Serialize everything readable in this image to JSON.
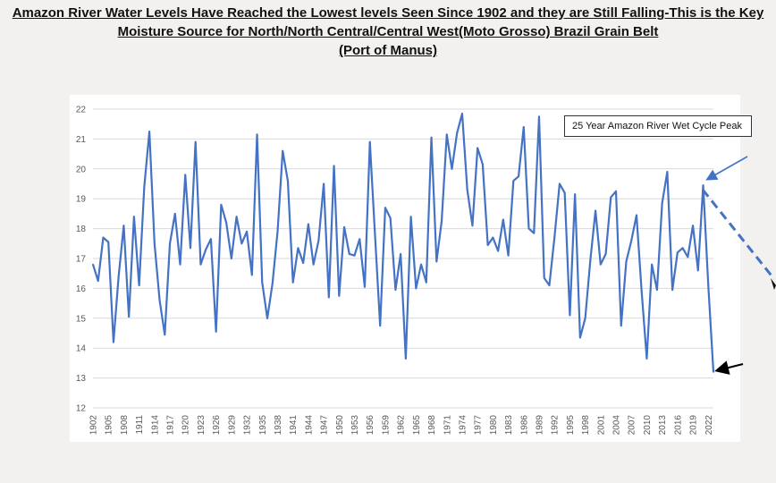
{
  "title": {
    "line1": "Amazon River Water Levels Have Reached the Lowest levels Seen Since 1902 and they are Still Falling-This is the Key",
    "line2": "Moisture Source for North/North Central/Central West(Moto Grosso) Brazil Grain Belt",
    "line3": "(Port of Manus)"
  },
  "annotation": "25 Year Amazon River Wet Cycle Peak",
  "colors": {
    "line": "#4472c4",
    "grid": "#d9d9d9",
    "arrow_dashed": "#4472c4",
    "arrow_black": "#000000"
  },
  "chart_data": {
    "type": "line",
    "title": "",
    "xlabel": "",
    "ylabel": "",
    "ylim": [
      12,
      22
    ],
    "yticks": [
      12,
      13,
      14,
      15,
      16,
      17,
      18,
      19,
      20,
      21,
      22
    ],
    "grid": true,
    "x_tick_labels": [
      "1902",
      "1905",
      "1908",
      "1911",
      "1914",
      "1917",
      "1920",
      "1923",
      "1926",
      "1929",
      "1932",
      "1935",
      "1938",
      "1941",
      "1944",
      "1947",
      "1950",
      "1953",
      "1956",
      "1959",
      "1962",
      "1965",
      "1968",
      "1971",
      "1974",
      "1977",
      "1980",
      "1983",
      "1986",
      "1989",
      "1992",
      "1995",
      "1998",
      "2001",
      "2004",
      "2007",
      "2010",
      "2013",
      "2016",
      "2019",
      "2022"
    ],
    "x_start": 1902,
    "x_end": 2023,
    "series": [
      {
        "name": "",
        "x": [
          1902,
          1903,
          1904,
          1905,
          1906,
          1907,
          1908,
          1909,
          1910,
          1911,
          1912,
          1913,
          1914,
          1915,
          1916,
          1917,
          1918,
          1919,
          1920,
          1921,
          1922,
          1923,
          1924,
          1925,
          1926,
          1927,
          1928,
          1929,
          1930,
          1931,
          1932,
          1933,
          1934,
          1935,
          1936,
          1937,
          1938,
          1939,
          1940,
          1941,
          1942,
          1943,
          1944,
          1945,
          1946,
          1947,
          1948,
          1949,
          1950,
          1951,
          1952,
          1953,
          1954,
          1955,
          1956,
          1957,
          1958,
          1959,
          1960,
          1961,
          1962,
          1963,
          1964,
          1965,
          1966,
          1967,
          1968,
          1969,
          1970,
          1971,
          1972,
          1973,
          1974,
          1975,
          1976,
          1977,
          1978,
          1979,
          1980,
          1981,
          1982,
          1983,
          1984,
          1985,
          1986,
          1987,
          1988,
          1989,
          1990,
          1991,
          1992,
          1993,
          1994,
          1995,
          1996,
          1997,
          1998,
          1999,
          2000,
          2001,
          2002,
          2003,
          2004,
          2005,
          2006,
          2007,
          2008,
          2009,
          2010,
          2011,
          2012,
          2013,
          2014,
          2015,
          2016,
          2017,
          2018,
          2019,
          2020,
          2021,
          2022,
          2023
        ],
        "values": [
          16.8,
          16.25,
          17.7,
          17.55,
          14.2,
          16.4,
          18.1,
          15.05,
          18.4,
          16.1,
          19.4,
          21.25,
          17.5,
          15.6,
          14.45,
          17.5,
          18.5,
          16.8,
          19.8,
          17.35,
          20.9,
          16.8,
          17.3,
          17.65,
          14.55,
          18.8,
          18.2,
          17.0,
          18.4,
          17.5,
          17.9,
          16.45,
          21.15,
          16.2,
          15.0,
          16.15,
          17.9,
          20.6,
          19.6,
          16.2,
          17.35,
          16.85,
          18.15,
          16.8,
          17.6,
          19.5,
          15.7,
          20.1,
          15.75,
          18.05,
          17.15,
          17.1,
          17.65,
          16.05,
          20.9,
          17.8,
          14.75,
          18.7,
          18.35,
          15.95,
          17.15,
          13.65,
          18.4,
          16.0,
          16.8,
          16.2,
          21.05,
          16.9,
          18.25,
          21.15,
          20.0,
          21.2,
          21.85,
          19.3,
          18.1,
          20.7,
          20.15,
          17.45,
          17.7,
          17.25,
          18.3,
          17.1,
          19.6,
          19.75,
          21.4,
          18.0,
          17.85,
          21.75,
          16.35,
          16.1,
          17.7,
          19.5,
          19.2,
          15.1,
          19.15,
          14.35,
          15.0,
          16.95,
          18.6,
          16.8,
          17.15,
          19.05,
          19.25,
          14.75,
          16.9,
          17.6,
          18.45,
          15.9,
          13.65,
          16.8,
          15.95,
          18.85,
          19.9,
          15.95,
          17.2,
          17.35,
          17.05,
          18.1,
          16.6,
          19.45,
          16.1,
          13.2
        ]
      }
    ]
  }
}
